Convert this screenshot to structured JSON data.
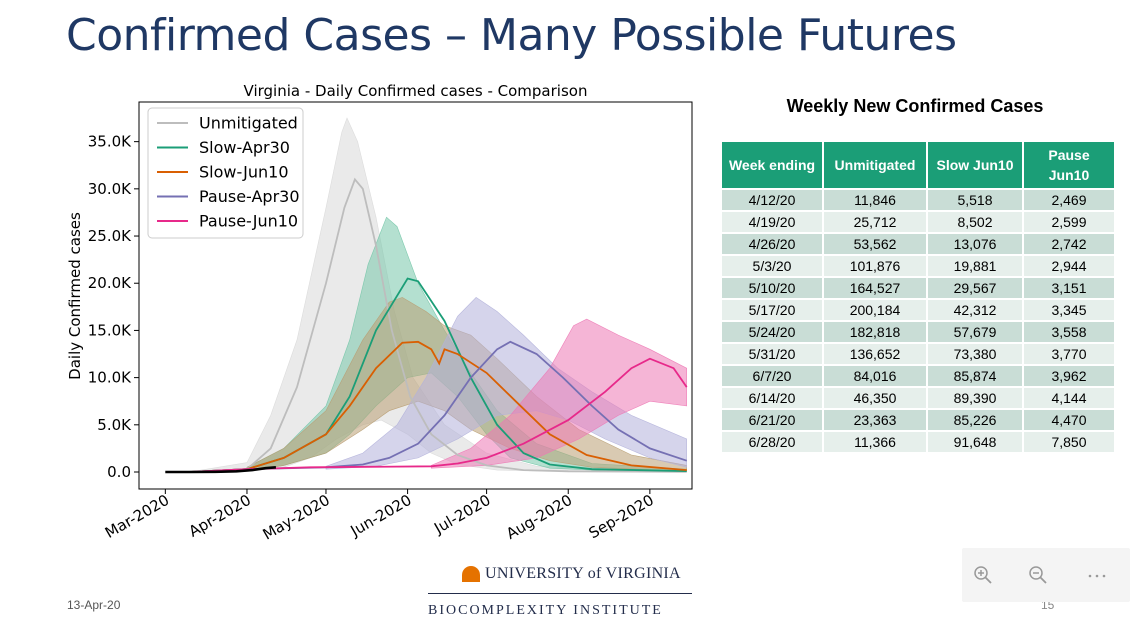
{
  "slide": {
    "title": "Confirmed Cases – Many Possible Futures",
    "footer_date": "13-Apr-20",
    "page_number": "15",
    "logo_text": "UNIVERSITY of VIRGINIA",
    "institute_text": "BIOCOMPLEXITY INSTITUTE"
  },
  "toolbar": {
    "zoom_in": "zoom-in-icon",
    "zoom_out": "zoom-out-icon",
    "more": "more-icon"
  },
  "chart_data": {
    "type": "line",
    "title": "Virginia - Daily Confirmed cases - Comparison",
    "xlabel": "",
    "ylabel": "Daily Confirmed cases",
    "x_ticks": [
      "Mar-2020",
      "Apr-2020",
      "May-2020",
      "Jun-2020",
      "Jul-2020",
      "Aug-2020",
      "Sep-2020"
    ],
    "x_tick_dates": [
      "2020-03-01",
      "2020-04-01",
      "2020-05-01",
      "2020-06-01",
      "2020-07-01",
      "2020-08-01",
      "2020-09-01"
    ],
    "xlim": [
      "2020-02-20",
      "2020-09-17"
    ],
    "y_ticks": [
      "0.0",
      "5.0K",
      "10.0K",
      "15.0K",
      "20.0K",
      "25.0K",
      "30.0K",
      "35.0K"
    ],
    "ylim": [
      -1800,
      39200
    ],
    "legend_position": "top-left",
    "grid": false,
    "series": [
      {
        "name": "Unmitigated",
        "color": "#bdbdbd",
        "band_color": "#d9d9d9",
        "mean": [
          [
            "2020-03-10",
            0
          ],
          [
            "2020-04-01",
            300
          ],
          [
            "2020-04-10",
            2500
          ],
          [
            "2020-04-20",
            9000
          ],
          [
            "2020-05-01",
            20000
          ],
          [
            "2020-05-08",
            28000
          ],
          [
            "2020-05-12",
            31000
          ],
          [
            "2020-05-15",
            30000
          ],
          [
            "2020-05-20",
            24000
          ],
          [
            "2020-05-26",
            15000
          ],
          [
            "2020-06-02",
            8000
          ],
          [
            "2020-06-10",
            4000
          ],
          [
            "2020-06-20",
            1800
          ],
          [
            "2020-07-01",
            700
          ],
          [
            "2020-07-15",
            200
          ],
          [
            "2020-08-01",
            80
          ],
          [
            "2020-09-15",
            20
          ]
        ],
        "upper": [
          [
            "2020-03-10",
            0
          ],
          [
            "2020-04-01",
            1000
          ],
          [
            "2020-04-10",
            6000
          ],
          [
            "2020-04-20",
            14000
          ],
          [
            "2020-05-01",
            28000
          ],
          [
            "2020-05-07",
            36000
          ],
          [
            "2020-05-09",
            37500
          ],
          [
            "2020-05-13",
            35000
          ],
          [
            "2020-05-20",
            27000
          ],
          [
            "2020-05-27",
            17000
          ],
          [
            "2020-06-03",
            10000
          ],
          [
            "2020-06-15",
            5000
          ],
          [
            "2020-07-01",
            2000
          ],
          [
            "2020-07-20",
            600
          ],
          [
            "2020-09-15",
            100
          ]
        ],
        "lower": [
          [
            "2020-03-10",
            0
          ],
          [
            "2020-04-01",
            50
          ],
          [
            "2020-04-15",
            500
          ],
          [
            "2020-04-25",
            1500
          ],
          [
            "2020-05-05",
            3500
          ],
          [
            "2020-05-15",
            5000
          ],
          [
            "2020-05-22",
            5500
          ],
          [
            "2020-06-01",
            4000
          ],
          [
            "2020-06-10",
            2000
          ],
          [
            "2020-06-20",
            800
          ],
          [
            "2020-07-05",
            200
          ],
          [
            "2020-08-01",
            50
          ],
          [
            "2020-09-15",
            10
          ]
        ]
      },
      {
        "name": "Slow-Apr30",
        "color": "#1b9e77",
        "band_color": "#76c6a9",
        "mean": [
          [
            "2020-03-10",
            0
          ],
          [
            "2020-04-01",
            300
          ],
          [
            "2020-04-15",
            1500
          ],
          [
            "2020-05-01",
            4000
          ],
          [
            "2020-05-10",
            8000
          ],
          [
            "2020-05-20",
            15000
          ],
          [
            "2020-06-01",
            20500
          ],
          [
            "2020-06-05",
            20200
          ],
          [
            "2020-06-15",
            16000
          ],
          [
            "2020-06-25",
            10000
          ],
          [
            "2020-07-05",
            5000
          ],
          [
            "2020-07-15",
            2000
          ],
          [
            "2020-07-25",
            800
          ],
          [
            "2020-08-10",
            300
          ],
          [
            "2020-09-15",
            100
          ]
        ],
        "upper": [
          [
            "2020-04-01",
            500
          ],
          [
            "2020-04-15",
            2500
          ],
          [
            "2020-05-01",
            7000
          ],
          [
            "2020-05-10",
            14000
          ],
          [
            "2020-05-17",
            22000
          ],
          [
            "2020-05-24",
            27000
          ],
          [
            "2020-05-28",
            26000
          ],
          [
            "2020-06-05",
            20000
          ],
          [
            "2020-06-15",
            15000
          ],
          [
            "2020-06-25",
            10500
          ],
          [
            "2020-07-05",
            6500
          ],
          [
            "2020-07-20",
            3000
          ],
          [
            "2020-08-10",
            900
          ],
          [
            "2020-09-15",
            300
          ]
        ],
        "lower": [
          [
            "2020-04-01",
            100
          ],
          [
            "2020-04-15",
            700
          ],
          [
            "2020-05-01",
            2000
          ],
          [
            "2020-05-10",
            4000
          ],
          [
            "2020-05-20",
            7000
          ],
          [
            "2020-06-01",
            10000
          ],
          [
            "2020-06-10",
            10500
          ],
          [
            "2020-06-20",
            8000
          ],
          [
            "2020-07-01",
            4000
          ],
          [
            "2020-07-10",
            1500
          ],
          [
            "2020-07-25",
            400
          ],
          [
            "2020-08-15",
            150
          ],
          [
            "2020-09-15",
            50
          ]
        ]
      },
      {
        "name": "Slow-Jun10",
        "color": "#d95f02",
        "band_color": "#b99f73",
        "mean": [
          [
            "2020-03-10",
            0
          ],
          [
            "2020-04-01",
            300
          ],
          [
            "2020-04-15",
            1500
          ],
          [
            "2020-05-01",
            4000
          ],
          [
            "2020-05-10",
            7000
          ],
          [
            "2020-05-20",
            11000
          ],
          [
            "2020-05-30",
            13700
          ],
          [
            "2020-06-05",
            13800
          ],
          [
            "2020-06-10",
            13000
          ],
          [
            "2020-06-13",
            11500
          ],
          [
            "2020-06-15",
            13000
          ],
          [
            "2020-06-20",
            12500
          ],
          [
            "2020-07-01",
            10500
          ],
          [
            "2020-07-12",
            7500
          ],
          [
            "2020-07-25",
            4000
          ],
          [
            "2020-08-08",
            1800
          ],
          [
            "2020-08-25",
            700
          ],
          [
            "2020-09-15",
            200
          ]
        ],
        "upper": [
          [
            "2020-04-01",
            500
          ],
          [
            "2020-04-15",
            2500
          ],
          [
            "2020-05-01",
            6500
          ],
          [
            "2020-05-15",
            14000
          ],
          [
            "2020-05-25",
            18000
          ],
          [
            "2020-05-30",
            18500
          ],
          [
            "2020-06-08",
            17000
          ],
          [
            "2020-06-15",
            15500
          ],
          [
            "2020-06-25",
            14500
          ],
          [
            "2020-07-05",
            12000
          ],
          [
            "2020-07-20",
            8000
          ],
          [
            "2020-08-05",
            4500
          ],
          [
            "2020-08-25",
            1800
          ],
          [
            "2020-09-15",
            700
          ]
        ],
        "lower": [
          [
            "2020-04-01",
            100
          ],
          [
            "2020-04-15",
            700
          ],
          [
            "2020-05-01",
            2000
          ],
          [
            "2020-05-15",
            4500
          ],
          [
            "2020-05-25",
            6500
          ],
          [
            "2020-06-05",
            7500
          ],
          [
            "2020-06-15",
            6500
          ],
          [
            "2020-06-25",
            4500
          ],
          [
            "2020-07-10",
            2500
          ],
          [
            "2020-07-25",
            1200
          ],
          [
            "2020-08-10",
            500
          ],
          [
            "2020-09-15",
            100
          ]
        ]
      },
      {
        "name": "Pause-Apr30",
        "color": "#7570b3",
        "band_color": "#b3b1da",
        "mean": [
          [
            "2020-03-10",
            0
          ],
          [
            "2020-04-01",
            300
          ],
          [
            "2020-05-01",
            500
          ],
          [
            "2020-05-15",
            800
          ],
          [
            "2020-05-25",
            1500
          ],
          [
            "2020-06-05",
            3000
          ],
          [
            "2020-06-15",
            6000
          ],
          [
            "2020-06-25",
            10000
          ],
          [
            "2020-07-05",
            13000
          ],
          [
            "2020-07-10",
            13800
          ],
          [
            "2020-07-20",
            12500
          ],
          [
            "2020-07-30",
            10000
          ],
          [
            "2020-08-10",
            7000
          ],
          [
            "2020-08-20",
            4500
          ],
          [
            "2020-09-01",
            2500
          ],
          [
            "2020-09-15",
            1200
          ]
        ],
        "upper": [
          [
            "2020-05-01",
            600
          ],
          [
            "2020-05-15",
            2000
          ],
          [
            "2020-05-28",
            5000
          ],
          [
            "2020-06-08",
            10000
          ],
          [
            "2020-06-20",
            16500
          ],
          [
            "2020-06-27",
            18500
          ],
          [
            "2020-07-05",
            17000
          ],
          [
            "2020-07-15",
            14500
          ],
          [
            "2020-07-28",
            11000
          ],
          [
            "2020-08-10",
            8500
          ],
          [
            "2020-08-25",
            6000
          ],
          [
            "2020-09-15",
            3500
          ]
        ],
        "lower": [
          [
            "2020-05-01",
            300
          ],
          [
            "2020-05-20",
            600
          ],
          [
            "2020-06-05",
            1500
          ],
          [
            "2020-06-20",
            3500
          ],
          [
            "2020-07-05",
            6000
          ],
          [
            "2020-07-20",
            6500
          ],
          [
            "2020-08-01",
            5500
          ],
          [
            "2020-08-15",
            3500
          ],
          [
            "2020-09-01",
            1500
          ],
          [
            "2020-09-15",
            500
          ]
        ]
      },
      {
        "name": "Pause-Jun10",
        "color": "#e7298a",
        "band_color": "#ed79b5",
        "mean": [
          [
            "2020-03-10",
            0
          ],
          [
            "2020-04-01",
            300
          ],
          [
            "2020-04-25",
            500
          ],
          [
            "2020-06-10",
            600
          ],
          [
            "2020-06-20",
            900
          ],
          [
            "2020-07-01",
            1500
          ],
          [
            "2020-07-15",
            3000
          ],
          [
            "2020-08-01",
            5500
          ],
          [
            "2020-08-15",
            8500
          ],
          [
            "2020-08-25",
            11000
          ],
          [
            "2020-09-01",
            12000
          ],
          [
            "2020-09-10",
            11000
          ],
          [
            "2020-09-15",
            9000
          ]
        ],
        "upper": [
          [
            "2020-06-10",
            700
          ],
          [
            "2020-06-25",
            2500
          ],
          [
            "2020-07-10",
            6000
          ],
          [
            "2020-07-25",
            11000
          ],
          [
            "2020-08-03",
            15500
          ],
          [
            "2020-08-08",
            16200
          ],
          [
            "2020-08-20",
            14500
          ],
          [
            "2020-09-01",
            13000
          ],
          [
            "2020-09-15",
            11000
          ]
        ],
        "lower": [
          [
            "2020-06-10",
            400
          ],
          [
            "2020-07-01",
            700
          ],
          [
            "2020-07-20",
            1500
          ],
          [
            "2020-08-05",
            3500
          ],
          [
            "2020-08-20",
            6000
          ],
          [
            "2020-09-01",
            7500
          ],
          [
            "2020-09-15",
            7000
          ]
        ]
      }
    ],
    "observed": {
      "color": "#000000",
      "points": [
        [
          "2020-03-01",
          0
        ],
        [
          "2020-03-10",
          0
        ],
        [
          "2020-03-20",
          20
        ],
        [
          "2020-03-28",
          80
        ],
        [
          "2020-04-03",
          200
        ],
        [
          "2020-04-08",
          400
        ],
        [
          "2020-04-12",
          500
        ]
      ]
    }
  },
  "table": {
    "title": "Weekly New Confirmed Cases",
    "headers": [
      "Week ending",
      "Unmitigated",
      "Slow Jun10",
      "Pause Jun10"
    ],
    "rows": [
      [
        "4/12/20",
        "11,846",
        "5,518",
        "2,469"
      ],
      [
        "4/19/20",
        "25,712",
        "8,502",
        "2,599"
      ],
      [
        "4/26/20",
        "53,562",
        "13,076",
        "2,742"
      ],
      [
        "5/3/20",
        "101,876",
        "19,881",
        "2,944"
      ],
      [
        "5/10/20",
        "164,527",
        "29,567",
        "3,151"
      ],
      [
        "5/17/20",
        "200,184",
        "42,312",
        "3,345"
      ],
      [
        "5/24/20",
        "182,818",
        "57,679",
        "3,558"
      ],
      [
        "5/31/20",
        "136,652",
        "73,380",
        "3,770"
      ],
      [
        "6/7/20",
        "84,016",
        "85,874",
        "3,962"
      ],
      [
        "6/14/20",
        "46,350",
        "89,390",
        "4,144"
      ],
      [
        "6/21/20",
        "23,363",
        "85,226",
        "4,470"
      ],
      [
        "6/28/20",
        "11,366",
        "91,648",
        "7,850"
      ]
    ]
  }
}
